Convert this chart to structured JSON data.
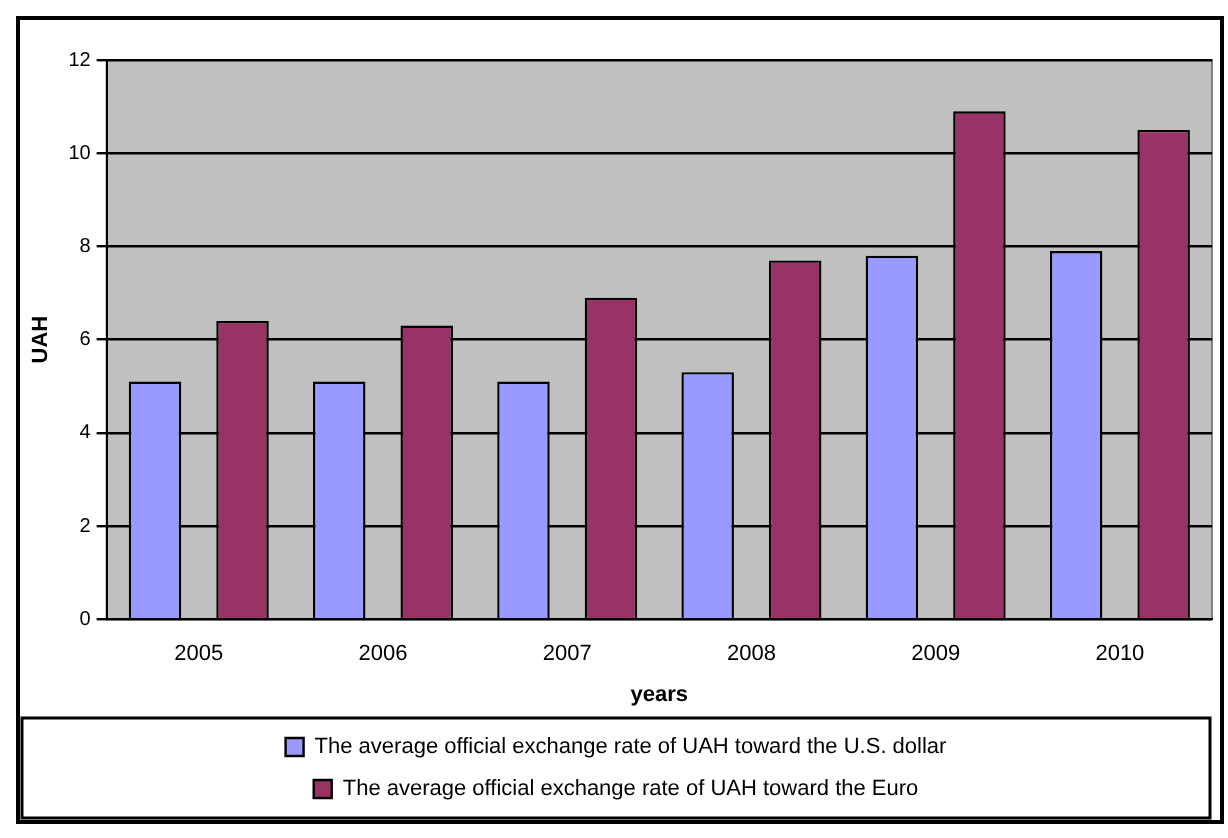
{
  "chart_data": {
    "type": "bar",
    "xlabel": "years",
    "ylabel": "UAH",
    "categories": [
      "2005",
      "2006",
      "2007",
      "2008",
      "2009",
      "2010"
    ],
    "series": [
      {
        "name": "The average official exchange rate of UAH toward the U.S. dollar",
        "color": "#9999ff",
        "values": [
          5.1,
          5.1,
          5.1,
          5.3,
          7.8,
          7.9
        ]
      },
      {
        "name": "The average official exchange rate of UAH toward the Euro",
        "color": "#993366",
        "values": [
          6.4,
          6.3,
          6.9,
          7.7,
          10.9,
          10.5
        ]
      }
    ],
    "ylim": [
      0,
      12
    ],
    "yticks": [
      0,
      2,
      4,
      6,
      8,
      10,
      12
    ],
    "grid": "y",
    "legend": "bottom"
  }
}
